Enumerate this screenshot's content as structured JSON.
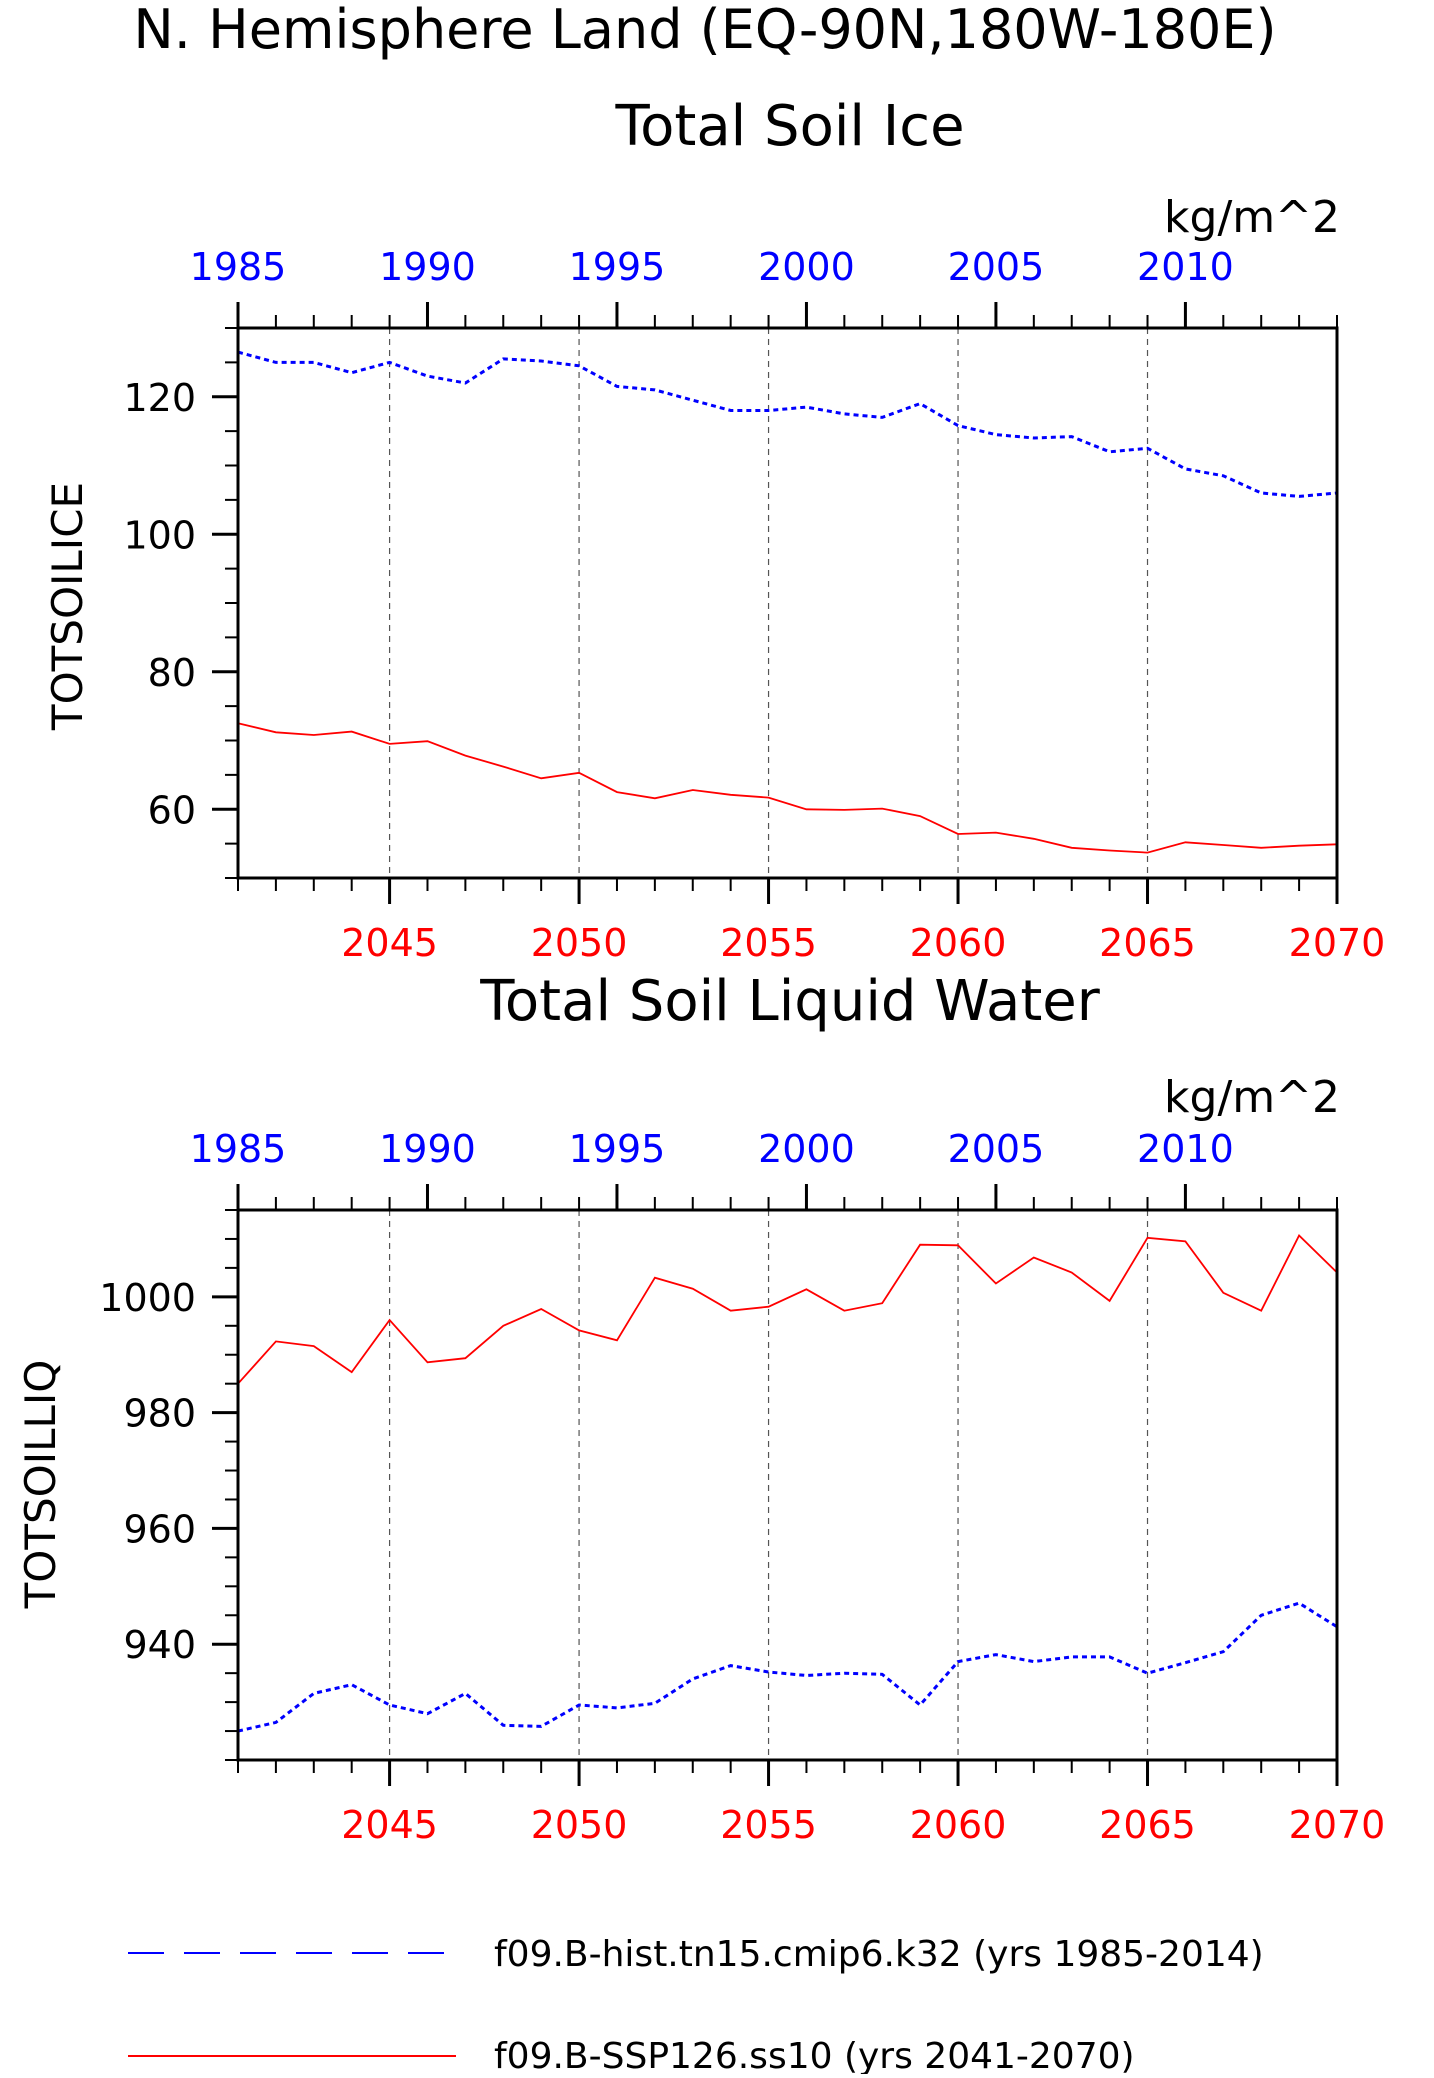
{
  "title": "N. Hemisphere Land (EQ-90N,180W-180E)",
  "units": "kg/m^2",
  "colors": {
    "hist": "#0000ff",
    "ssp": "#ff0000",
    "axis": "#000000",
    "grid": "#555555"
  },
  "legend": [
    {
      "label": "f09.B-hist.tn15.cmip6.k32 (yrs 1985-2014)",
      "color": "#0000ff",
      "style": "dashed"
    },
    {
      "label": "f09.B-SSP126.ss10 (yrs 2041-2070)",
      "color": "#ff0000",
      "style": "solid"
    }
  ],
  "chart_data": [
    {
      "type": "line",
      "title": "Total Soil Ice",
      "ylabel": "TOTSOILICE",
      "units": "kg/m^2",
      "ylim": [
        50,
        130
      ],
      "yticks": [
        60,
        80,
        100,
        120
      ],
      "top_axis": {
        "range": [
          1985,
          2014
        ],
        "labels": [
          "1985",
          "1990",
          "1995",
          "2000",
          "2005",
          "2010"
        ]
      },
      "bottom_axis": {
        "range": [
          2041,
          2070
        ],
        "labels": [
          "2045",
          "2050",
          "2055",
          "2060",
          "2065",
          "2070"
        ]
      },
      "grid": "vertical dashed at bottom-axis major ticks",
      "series": [
        {
          "name": "f09.B-hist.tn15.cmip6.k32 (yrs 1985-2014)",
          "axis": "top",
          "style": "dashed",
          "x": [
            1985,
            1986,
            1987,
            1988,
            1989,
            1990,
            1991,
            1992,
            1993,
            1994,
            1995,
            1996,
            1997,
            1998,
            1999,
            2000,
            2001,
            2002,
            2003,
            2004,
            2005,
            2006,
            2007,
            2008,
            2009,
            2010,
            2011,
            2012,
            2013,
            2014
          ],
          "values": [
            126.5,
            125.0,
            125.0,
            123.5,
            125.0,
            123.0,
            122.0,
            125.5,
            125.2,
            124.5,
            121.5,
            121.0,
            119.5,
            118.0,
            118.0,
            118.5,
            117.5,
            117.0,
            119.0,
            115.8,
            114.5,
            114.0,
            114.2,
            112.0,
            112.5,
            109.5,
            108.5,
            106.0,
            105.5,
            106.0
          ]
        },
        {
          "name": "f09.B-SSP126.ss10 (yrs 2041-2070)",
          "axis": "bottom",
          "style": "solid",
          "x": [
            2041,
            2042,
            2043,
            2044,
            2045,
            2046,
            2047,
            2048,
            2049,
            2050,
            2051,
            2052,
            2053,
            2054,
            2055,
            2056,
            2057,
            2058,
            2059,
            2060,
            2061,
            2062,
            2063,
            2064,
            2065,
            2066,
            2067,
            2068,
            2069,
            2070
          ],
          "values": [
            72.5,
            71.2,
            70.8,
            71.3,
            69.5,
            69.9,
            67.8,
            66.2,
            64.5,
            65.3,
            62.5,
            61.6,
            62.8,
            62.1,
            61.7,
            60.0,
            59.9,
            60.1,
            59.0,
            56.4,
            56.6,
            55.7,
            54.4,
            54.0,
            53.7,
            55.2,
            54.8,
            54.4,
            54.7,
            54.9
          ]
        }
      ]
    },
    {
      "type": "line",
      "title": "Total Soil Liquid Water",
      "ylabel": "TOTSOILLIQ",
      "units": "kg/m^2",
      "ylim": [
        920,
        1015
      ],
      "yticks": [
        940,
        960,
        980,
        1000
      ],
      "top_axis": {
        "range": [
          1985,
          2014
        ],
        "labels": [
          "1985",
          "1990",
          "1995",
          "2000",
          "2005",
          "2010"
        ]
      },
      "bottom_axis": {
        "range": [
          2041,
          2070
        ],
        "labels": [
          "2045",
          "2050",
          "2055",
          "2060",
          "2065",
          "2070"
        ]
      },
      "grid": "vertical dashed at bottom-axis major ticks",
      "series": [
        {
          "name": "f09.B-hist.tn15.cmip6.k32 (yrs 1985-2014)",
          "axis": "top",
          "style": "dashed",
          "x": [
            1985,
            1986,
            1987,
            1988,
            1989,
            1990,
            1991,
            1992,
            1993,
            1994,
            1995,
            1996,
            1997,
            1998,
            1999,
            2000,
            2001,
            2002,
            2003,
            2004,
            2005,
            2006,
            2007,
            2008,
            2009,
            2010,
            2011,
            2012,
            2013,
            2014
          ],
          "values": [
            925.0,
            926.5,
            931.5,
            933.0,
            929.5,
            928.0,
            931.5,
            926.0,
            925.8,
            929.5,
            929.0,
            929.8,
            934.0,
            936.3,
            935.2,
            934.6,
            935.0,
            934.8,
            929.5,
            937.0,
            938.2,
            937.0,
            937.8,
            937.8,
            935.0,
            936.8,
            938.7,
            945.0,
            947.1,
            943.0
          ]
        },
        {
          "name": "f09.B-SSP126.ss10 (yrs 2041-2070)",
          "axis": "bottom",
          "style": "solid",
          "x": [
            2041,
            2042,
            2043,
            2044,
            2045,
            2046,
            2047,
            2048,
            2049,
            2050,
            2051,
            2052,
            2053,
            2054,
            2055,
            2056,
            2057,
            2058,
            2059,
            2060,
            2061,
            2062,
            2063,
            2064,
            2065,
            2066,
            2067,
            2068,
            2069,
            2070
          ],
          "values": [
            985.0,
            992.3,
            991.5,
            987.0,
            996.0,
            988.7,
            989.4,
            995.0,
            997.9,
            994.2,
            992.5,
            1003.3,
            1001.4,
            997.6,
            998.3,
            1001.3,
            997.6,
            998.9,
            1009.0,
            1008.9,
            1002.3,
            1006.8,
            1004.2,
            999.3,
            1010.2,
            1009.6,
            1000.7,
            997.6,
            1010.6,
            1004.2
          ]
        }
      ]
    }
  ]
}
